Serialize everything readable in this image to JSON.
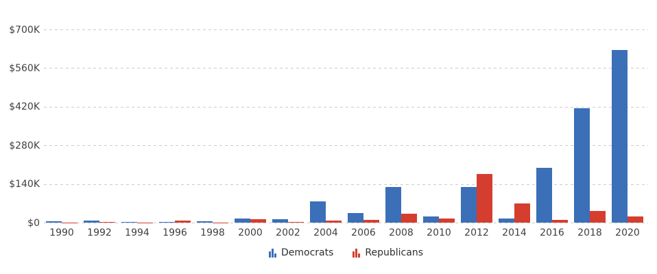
{
  "chart_data": {
    "type": "bar",
    "unit": "USD thousands",
    "categories": [
      "1990",
      "1992",
      "1994",
      "1996",
      "1998",
      "2000",
      "2002",
      "2004",
      "2006",
      "2008",
      "2010",
      "2012",
      "2014",
      "2016",
      "2018",
      "2020"
    ],
    "series": [
      {
        "name": "Democrats",
        "color": "#3b6fb8",
        "values": [
          6,
          8,
          3,
          4,
          6,
          16,
          13,
          78,
          35,
          131,
          24,
          130,
          15,
          201,
          415,
          628
        ]
      },
      {
        "name": "Republicans",
        "color": "#d53e2e",
        "values": [
          1,
          4,
          1,
          8,
          1,
          14,
          3,
          9,
          12,
          33,
          15,
          178,
          70,
          10,
          43,
          24
        ]
      }
    ],
    "yticks": [
      {
        "label": "$0",
        "value": 0
      },
      {
        "label": "$140K",
        "value": 140
      },
      {
        "label": "$280K",
        "value": 280
      },
      {
        "label": "$420K",
        "value": 420
      },
      {
        "label": "$560K",
        "value": 560
      },
      {
        "label": "$700K",
        "value": 700
      }
    ],
    "ylim": [
      0,
      700
    ],
    "xlabel": "",
    "ylabel": "",
    "title": "",
    "grid": "horizontal-dashed",
    "grid_color": "#cbcbcb",
    "tick_text_color": "#3f3f3f",
    "legend_position": "bottom-center",
    "legend": {
      "items": [
        {
          "label": "Democrats",
          "color": "#3b6fb8",
          "icon": "bar-chart-icon"
        },
        {
          "label": "Republicans",
          "color": "#d53e2e",
          "icon": "bar-chart-icon"
        }
      ]
    }
  }
}
